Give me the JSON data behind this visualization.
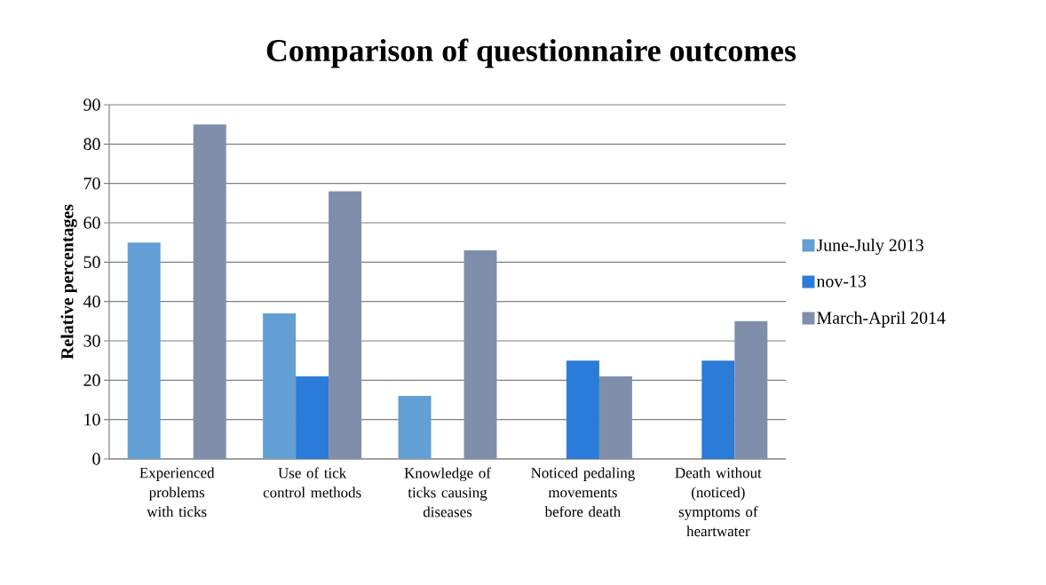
{
  "chart_data": {
    "type": "bar",
    "title": "Comparison of questionnaire outcomes",
    "ylabel": "Relative percentages",
    "categories": [
      "Experienced problems with ticks",
      "Use of tick control methods",
      "Knowledge of ticks causing diseases",
      "Noticed pedaling movements before death",
      "Death without (noticed) symptoms of heartwater"
    ],
    "series": [
      {
        "name": "June-July 2013",
        "color": "#629fd4",
        "values": [
          55,
          37,
          16,
          null,
          null
        ]
      },
      {
        "name": "nov-13",
        "color": "#2b7bd8",
        "values": [
          null,
          21,
          null,
          25,
          25
        ]
      },
      {
        "name": "March-April 2014",
        "color": "#7f8fab",
        "values": [
          85,
          68,
          53,
          21,
          35
        ]
      }
    ],
    "ylim": [
      0,
      90
    ],
    "yticks": [
      0,
      10,
      20,
      30,
      40,
      50,
      60,
      70,
      80,
      90
    ],
    "grid": "y",
    "legend": "right"
  }
}
